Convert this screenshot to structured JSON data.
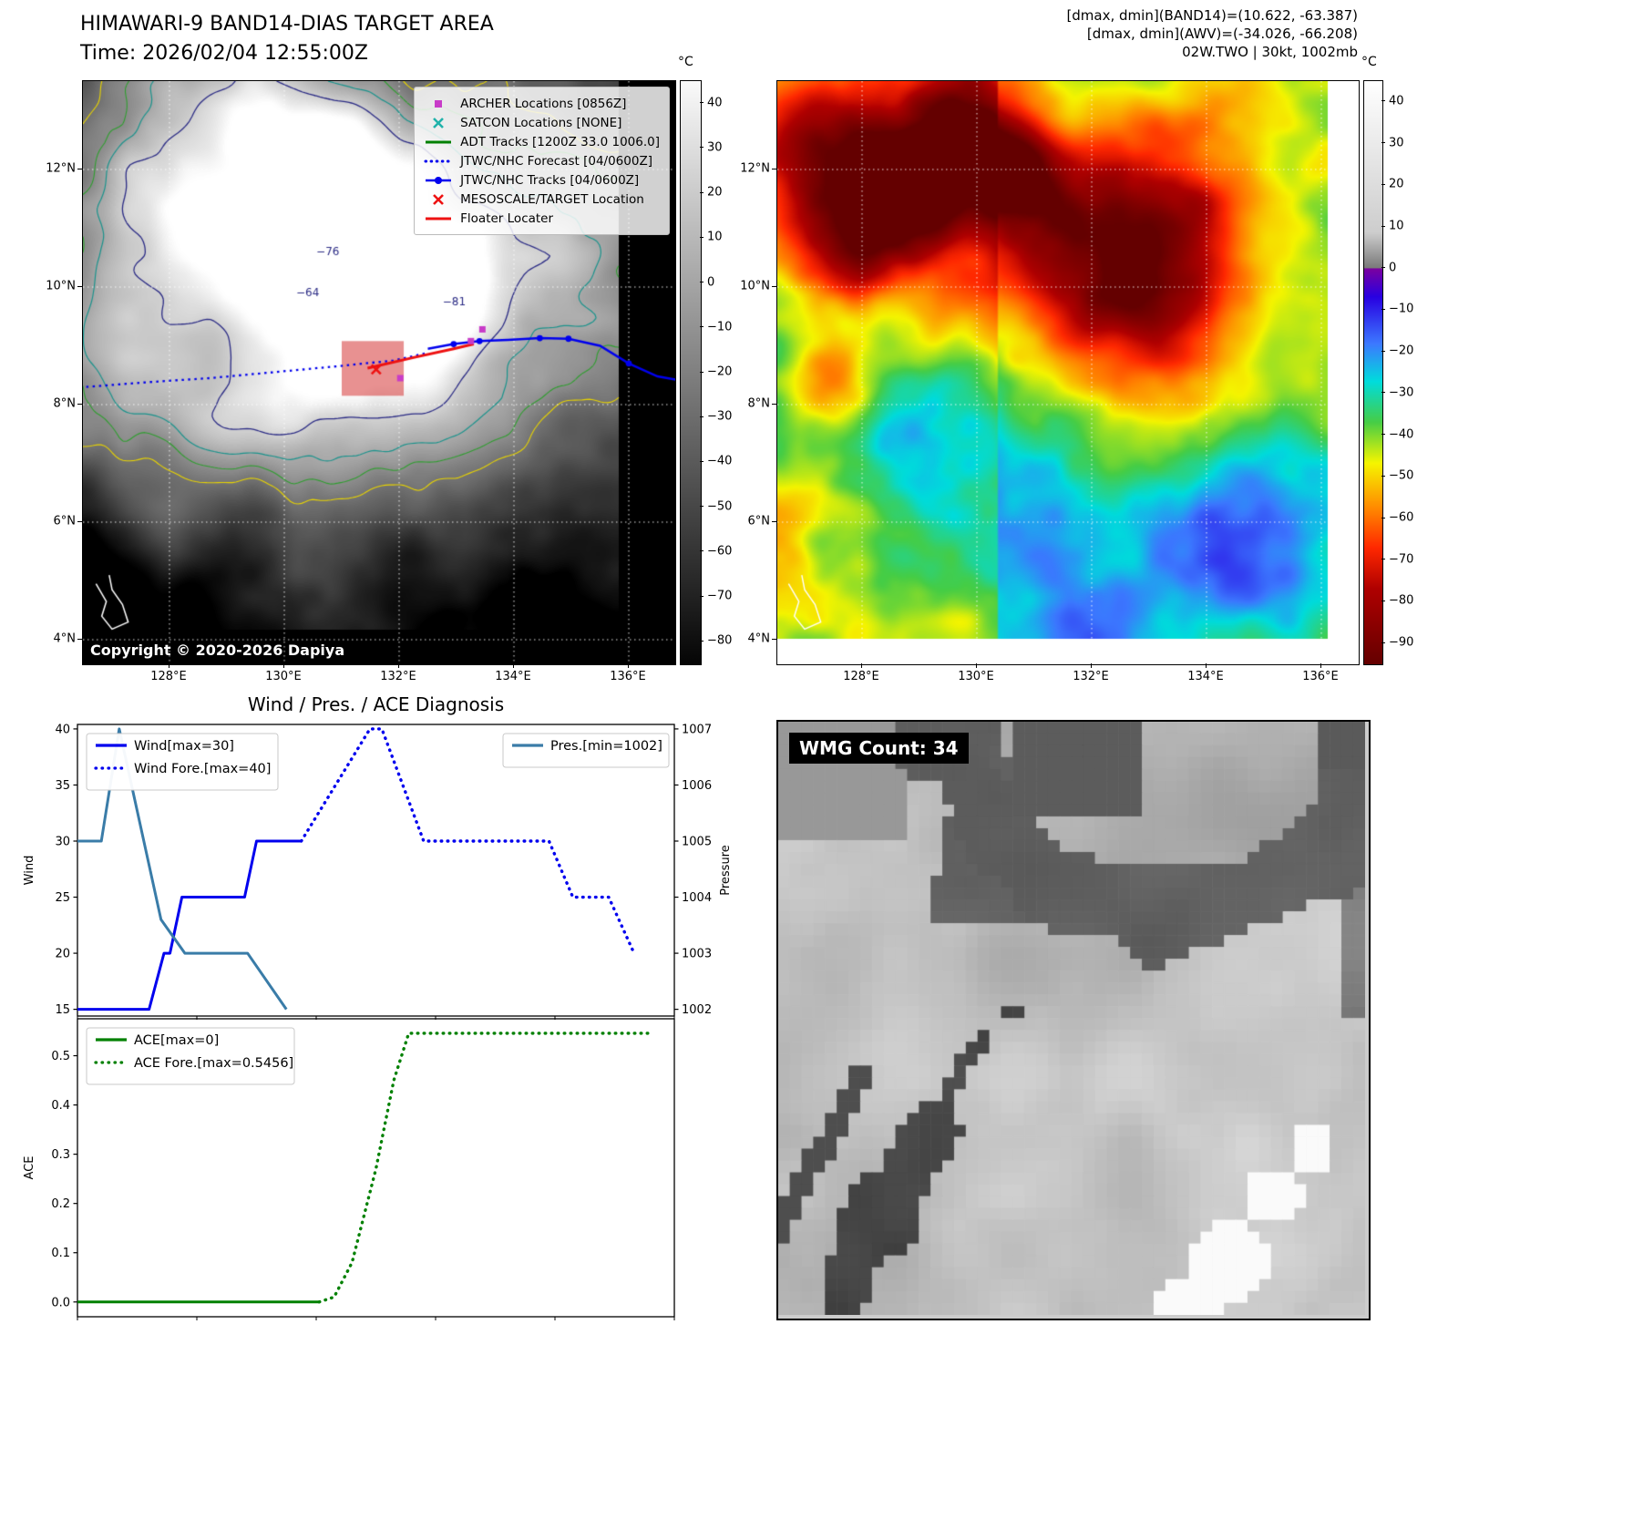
{
  "panel_band14": {
    "title_line1": "HIMAWARI-9 BAND14-DIAS TARGET AREA",
    "title_line2": "Time: 2026/02/04 12:55:00Z",
    "copyright": "Copyright © 2020-2026 Dapiya",
    "legend": [
      {
        "label": "ARCHER Locations [0856Z]",
        "marker": "square",
        "color": "#c83cc8"
      },
      {
        "label": "SATCON Locations [NONE]",
        "marker": "x",
        "color": "#20b2aa"
      },
      {
        "label": "ADT Tracks [1200Z 33.0 1006.0]",
        "marker": "line",
        "color": "#008000"
      },
      {
        "label": "JTWC/NHC Forecast [04/0600Z]",
        "marker": "dotted-line",
        "color": "#0000ee"
      },
      {
        "label": "JTWC/NHC Tracks [04/0600Z]",
        "marker": "line-marker",
        "color": "#0000ee"
      },
      {
        "label": "MESOSCALE/TARGET Location",
        "marker": "x",
        "color": "#ee1111"
      },
      {
        "label": "Floater Locater",
        "marker": "line",
        "color": "#ee1111"
      }
    ],
    "lon_axis": {
      "values": [
        128,
        130,
        132,
        134,
        136
      ],
      "labels": [
        "128°E",
        "130°E",
        "132°E",
        "134°E",
        "136°E"
      ]
    },
    "lat_axis": {
      "values": [
        12,
        10,
        8,
        6,
        4
      ],
      "labels": [
        "12°N",
        "10°N",
        "8°N",
        "6°N",
        "4°N"
      ]
    },
    "colorbar": {
      "unit": "°C",
      "range": [
        45,
        -85
      ],
      "ticks": {
        "values": [
          40,
          30,
          20,
          10,
          0,
          -10,
          -20,
          -30,
          -40,
          -50,
          -60,
          -70,
          -80
        ],
        "labels": [
          "40",
          "30",
          "20",
          "10",
          "0",
          "−10",
          "−20",
          "−30",
          "−40",
          "−50",
          "−60",
          "−70",
          "−80"
        ]
      },
      "stops": [
        {
          "t": 0,
          "c": "#fafafa"
        },
        {
          "t": 1,
          "c": "#050505"
        }
      ]
    },
    "contour_labels": [
      {
        "text": "−76",
        "lon": 130.7,
        "lat": 10.6
      },
      {
        "text": "−64",
        "lon": 130.35,
        "lat": 9.9
      },
      {
        "text": "−81",
        "lon": 132.9,
        "lat": 9.75
      }
    ],
    "tracks": {
      "jtwc_forecast": [
        [
          126.55,
          8.3
        ],
        [
          127.6,
          8.38
        ],
        [
          128.7,
          8.45
        ],
        [
          129.8,
          8.55
        ],
        [
          130.9,
          8.65
        ],
        [
          131.9,
          8.75
        ],
        [
          132.45,
          8.87
        ]
      ],
      "jtwc_obs": [
        [
          132.5,
          8.95
        ],
        [
          132.95,
          9.03
        ],
        [
          133.4,
          9.08
        ],
        [
          133.9,
          9.1
        ],
        [
          134.45,
          9.13
        ],
        [
          134.95,
          9.12
        ],
        [
          135.5,
          9.0
        ],
        [
          136.0,
          8.7
        ],
        [
          136.5,
          8.48
        ],
        [
          136.85,
          8.42
        ]
      ],
      "jtwc_obs_dots": [
        [
          132.95,
          9.03
        ],
        [
          133.4,
          9.08
        ],
        [
          134.45,
          9.13
        ],
        [
          134.95,
          9.12
        ],
        [
          136.0,
          8.7
        ]
      ],
      "floater": [
        [
          131.45,
          8.62
        ],
        [
          132.25,
          8.8
        ],
        [
          132.95,
          8.95
        ],
        [
          133.3,
          9.03
        ]
      ],
      "archer_fixes": [
        [
          132.02,
          8.45
        ],
        [
          133.25,
          9.08
        ],
        [
          133.45,
          9.28
        ]
      ],
      "mesoscale_target": [
        131.6,
        8.6
      ],
      "target_box": {
        "lon_min": 131.0,
        "lon_max": 132.08,
        "lat_min": 8.15,
        "lat_max": 9.08
      }
    }
  },
  "panel_awv": {
    "header_line1": "[dmax, dmin](BAND14)=(10.622, -63.387)",
    "header_line2": "[dmax, dmin](AWV)=(-34.026, -66.208)",
    "header_line3": "02W.TWO | 30kt, 1002mb",
    "lon_axis": {
      "values": [
        128,
        130,
        132,
        134,
        136
      ],
      "labels": [
        "128°E",
        "130°E",
        "132°E",
        "134°E",
        "136°E"
      ]
    },
    "lat_axis": {
      "values": [
        12,
        10,
        8,
        6,
        4
      ],
      "labels": [
        "12°N",
        "10°N",
        "8°N",
        "6°N",
        "4°N"
      ]
    },
    "colorbar": {
      "unit": "°C",
      "range": [
        45,
        -95
      ],
      "ticks": {
        "values": [
          40,
          30,
          20,
          10,
          0,
          -10,
          -20,
          -30,
          -40,
          -50,
          -60,
          -70,
          -80,
          -90
        ],
        "labels": [
          "40",
          "30",
          "20",
          "10",
          "0",
          "−10",
          "−20",
          "−30",
          "−40",
          "−50",
          "−60",
          "−70",
          "−80",
          "−90"
        ]
      },
      "stops": [
        {
          "t": 0,
          "c": "#ffffff"
        },
        {
          "t": 0.26,
          "c": "#cdcdcd"
        },
        {
          "t": 0.32,
          "c": "#7a7a7a"
        },
        {
          "t": 0.322,
          "c": "#7a00a0"
        },
        {
          "t": 0.37,
          "c": "#2800e1"
        },
        {
          "t": 0.45,
          "c": "#3c78ff"
        },
        {
          "t": 0.515,
          "c": "#00dcdc"
        },
        {
          "t": 0.585,
          "c": "#46cd46"
        },
        {
          "t": 0.655,
          "c": "#f5f500"
        },
        {
          "t": 0.73,
          "c": "#ff8c00"
        },
        {
          "t": 0.8,
          "c": "#ff2800"
        },
        {
          "t": 0.87,
          "c": "#af0000"
        },
        {
          "t": 1,
          "c": "#640000"
        }
      ]
    }
  },
  "panel_wmg": {
    "label": "WMG Count: 34"
  },
  "chart_data": [
    {
      "type": "line",
      "name": "wind_pressure",
      "title": "Wind / Pres. / ACE Diagnosis",
      "ylabel_left": "Wind",
      "ylabel_right": "Pressure",
      "xlim": [
        0,
        100
      ],
      "ylim_left": [
        14.4,
        40.4
      ],
      "ylim_right": [
        1001.88,
        1007.08
      ],
      "yticks_left": {
        "values": [
          15,
          20,
          25,
          30,
          35,
          40
        ],
        "labels": [
          "15",
          "20",
          "25",
          "30",
          "35",
          "40"
        ]
      },
      "yticks_right": {
        "values": [
          1002,
          1003,
          1004,
          1005,
          1006,
          1007
        ],
        "labels": [
          "1002",
          "1003",
          "1004",
          "1005",
          "1006",
          "1007"
        ]
      },
      "series": [
        {
          "name": "Wind[max=30]",
          "axis": "left",
          "style": "solid",
          "color": "#0000ee",
          "points": [
            [
              0,
              15
            ],
            [
              12,
              15
            ],
            [
              14.5,
              20
            ],
            [
              15.5,
              20
            ],
            [
              17.5,
              25
            ],
            [
              28,
              25
            ],
            [
              30,
              30
            ],
            [
              37.5,
              30
            ]
          ]
        },
        {
          "name": "Wind Fore.[max=40]",
          "axis": "left",
          "style": "dotted",
          "color": "#0000ee",
          "points": [
            [
              37.5,
              30
            ],
            [
              49,
              40
            ],
            [
              51,
              40
            ],
            [
              58,
              30
            ],
            [
              79,
              30
            ],
            [
              83,
              25
            ],
            [
              89,
              25
            ],
            [
              93,
              20.3
            ]
          ]
        },
        {
          "name": "Pres.[min=1002]",
          "axis": "right",
          "style": "solid",
          "color": "#3a7ca8",
          "points": [
            [
              0,
              1005
            ],
            [
              4,
              1005
            ],
            [
              7,
              1007
            ],
            [
              14,
              1003.6
            ],
            [
              18,
              1003
            ],
            [
              28.5,
              1003
            ],
            [
              35,
              1002
            ]
          ]
        }
      ],
      "legends": [
        {
          "position": "upper-left",
          "entries": [
            "Wind[max=30]",
            "Wind Fore.[max=40]"
          ]
        },
        {
          "position": "upper-right",
          "entries": [
            "Pres.[min=1002]"
          ]
        }
      ]
    },
    {
      "type": "line",
      "name": "ace",
      "ylabel_left": "ACE",
      "xlim": [
        0,
        100
      ],
      "ylim_left": [
        -0.03,
        0.575
      ],
      "yticks_left": {
        "values": [
          0.0,
          0.1,
          0.2,
          0.3,
          0.4,
          0.5
        ],
        "labels": [
          "0.0",
          "0.1",
          "0.2",
          "0.3",
          "0.4",
          "0.5"
        ]
      },
      "series": [
        {
          "name": "ACE[max=0]",
          "axis": "left",
          "style": "solid",
          "color": "#008000",
          "points": [
            [
              0,
              0
            ],
            [
              40.5,
              0
            ]
          ]
        },
        {
          "name": "ACE Fore.[max=0.5456]",
          "axis": "left",
          "style": "dotted",
          "color": "#008000",
          "points": [
            [
              40.5,
              0
            ],
            [
              43,
              0.01
            ],
            [
              46,
              0.08
            ],
            [
              50,
              0.27
            ],
            [
              53,
              0.45
            ],
            [
              55.5,
              0.5456
            ],
            [
              96,
              0.5456
            ]
          ]
        }
      ],
      "legends": [
        {
          "position": "upper-left",
          "entries": [
            "ACE[max=0]",
            "ACE Fore.[max=0.5456]"
          ]
        }
      ]
    }
  ]
}
